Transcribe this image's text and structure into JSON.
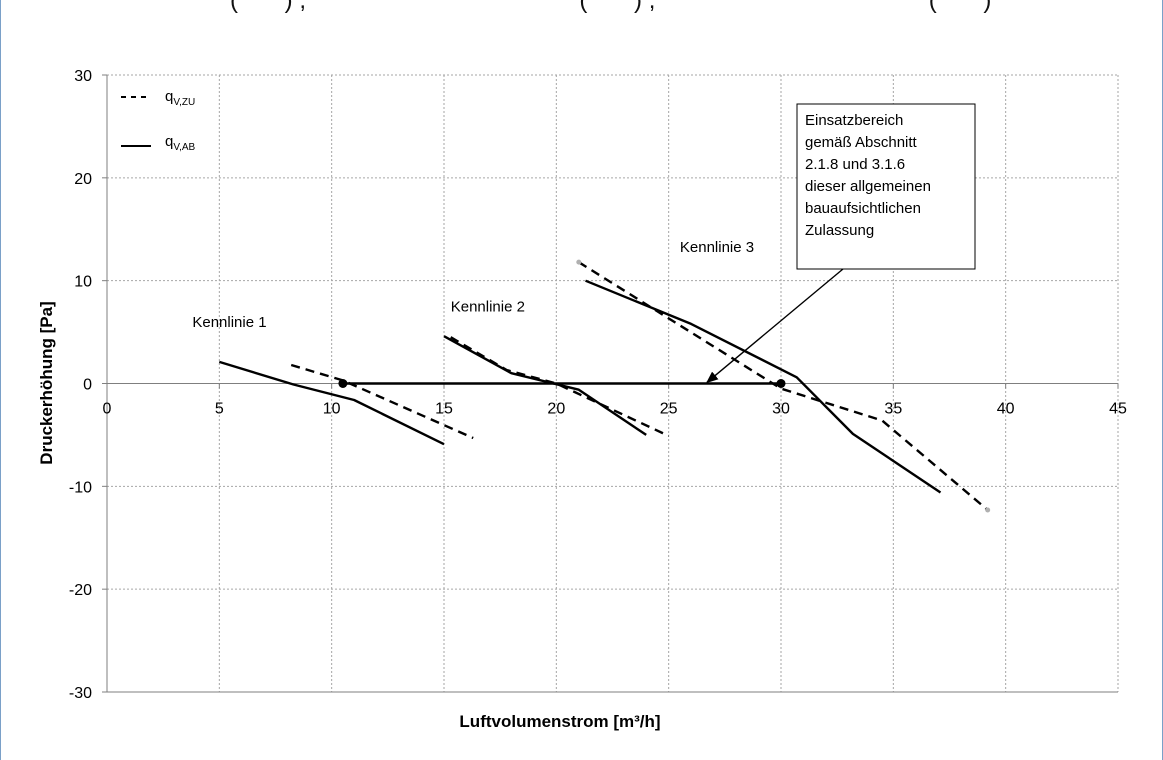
{
  "top_strip_text": "(       ) ,                                         (       ) ,                                         (       )",
  "chart_data": {
    "type": "line",
    "title": "",
    "xlabel": "Luftvolumenstrom [m³/h]",
    "ylabel": "Druckerhöhung [Pa]",
    "xlim": [
      0,
      45
    ],
    "ylim": [
      -30,
      30
    ],
    "xticks": [
      0,
      5,
      10,
      15,
      20,
      25,
      30,
      35,
      40,
      45
    ],
    "yticks": [
      -30,
      -20,
      -10,
      0,
      10,
      20,
      30
    ],
    "xtick_labels": [
      "0",
      "5",
      "10",
      "15",
      "20",
      "25",
      "30",
      "35",
      "40",
      "45"
    ],
    "ytick_labels": [
      "-30",
      "-20",
      "-10",
      "0",
      "10",
      "20",
      "30"
    ],
    "grid": true,
    "legend_position": "top-left",
    "legend": [
      {
        "main": "q",
        "sub": "V,ZU",
        "style": "dashed"
      },
      {
        "main": "q",
        "sub": "V,AB",
        "style": "solid"
      }
    ],
    "series": [
      {
        "group": "Kennlinie 1",
        "style": "dashed",
        "points": [
          [
            8.2,
            1.8
          ],
          [
            10.5,
            0.3
          ],
          [
            16.3,
            -5.3
          ]
        ]
      },
      {
        "group": "Kennlinie 1",
        "style": "solid",
        "points": [
          [
            5.0,
            2.1
          ],
          [
            8.3,
            -0.1
          ],
          [
            11.0,
            -1.6
          ],
          [
            15.0,
            -5.9
          ]
        ]
      },
      {
        "group": "Kennlinie 2",
        "style": "dashed",
        "points": [
          [
            15.3,
            4.5
          ],
          [
            17.8,
            1.3
          ],
          [
            20.0,
            0.0
          ],
          [
            25.0,
            -5.1
          ]
        ]
      },
      {
        "group": "Kennlinie 2",
        "style": "solid",
        "points": [
          [
            15.0,
            4.6
          ],
          [
            18.0,
            1.0
          ],
          [
            21.0,
            -0.6
          ],
          [
            24.0,
            -5.0
          ]
        ]
      },
      {
        "group": "Kennlinie 3",
        "style": "dashed",
        "points": [
          [
            21.0,
            11.8
          ],
          [
            30.0,
            -0.5
          ],
          [
            34.5,
            -3.6
          ],
          [
            39.2,
            -12.3
          ]
        ]
      },
      {
        "group": "Kennlinie 3",
        "style": "solid",
        "points": [
          [
            21.3,
            10.0
          ],
          [
            26.0,
            5.8
          ],
          [
            30.7,
            0.6
          ],
          [
            33.2,
            -4.9
          ],
          [
            37.1,
            -10.6
          ]
        ]
      }
    ],
    "operating_range": {
      "x": [
        10.5,
        30.0
      ],
      "y": 0
    },
    "curve_labels": [
      {
        "text": "Kennlinie 1",
        "x": 3.8,
        "y": 5.5
      },
      {
        "text": "Kennlinie 2",
        "x": 15.3,
        "y": 7.0
      },
      {
        "text": "Kennlinie 3",
        "x": 25.5,
        "y": 12.8
      }
    ],
    "annotation": {
      "lines": [
        "Einsatzbereich",
        "gemäß Abschnitt",
        "2.1.8 und 3.1.6",
        "dieser allgemeinen",
        "bauaufsichtlichen",
        "Zulassung"
      ],
      "arrow_to": {
        "x": 26.7,
        "y": 0.1
      }
    },
    "colors": {
      "line": "#000000",
      "grid": "#a6a6a6",
      "axis": "#7f7f7f",
      "marker_grey": "#b0b0b0"
    }
  }
}
